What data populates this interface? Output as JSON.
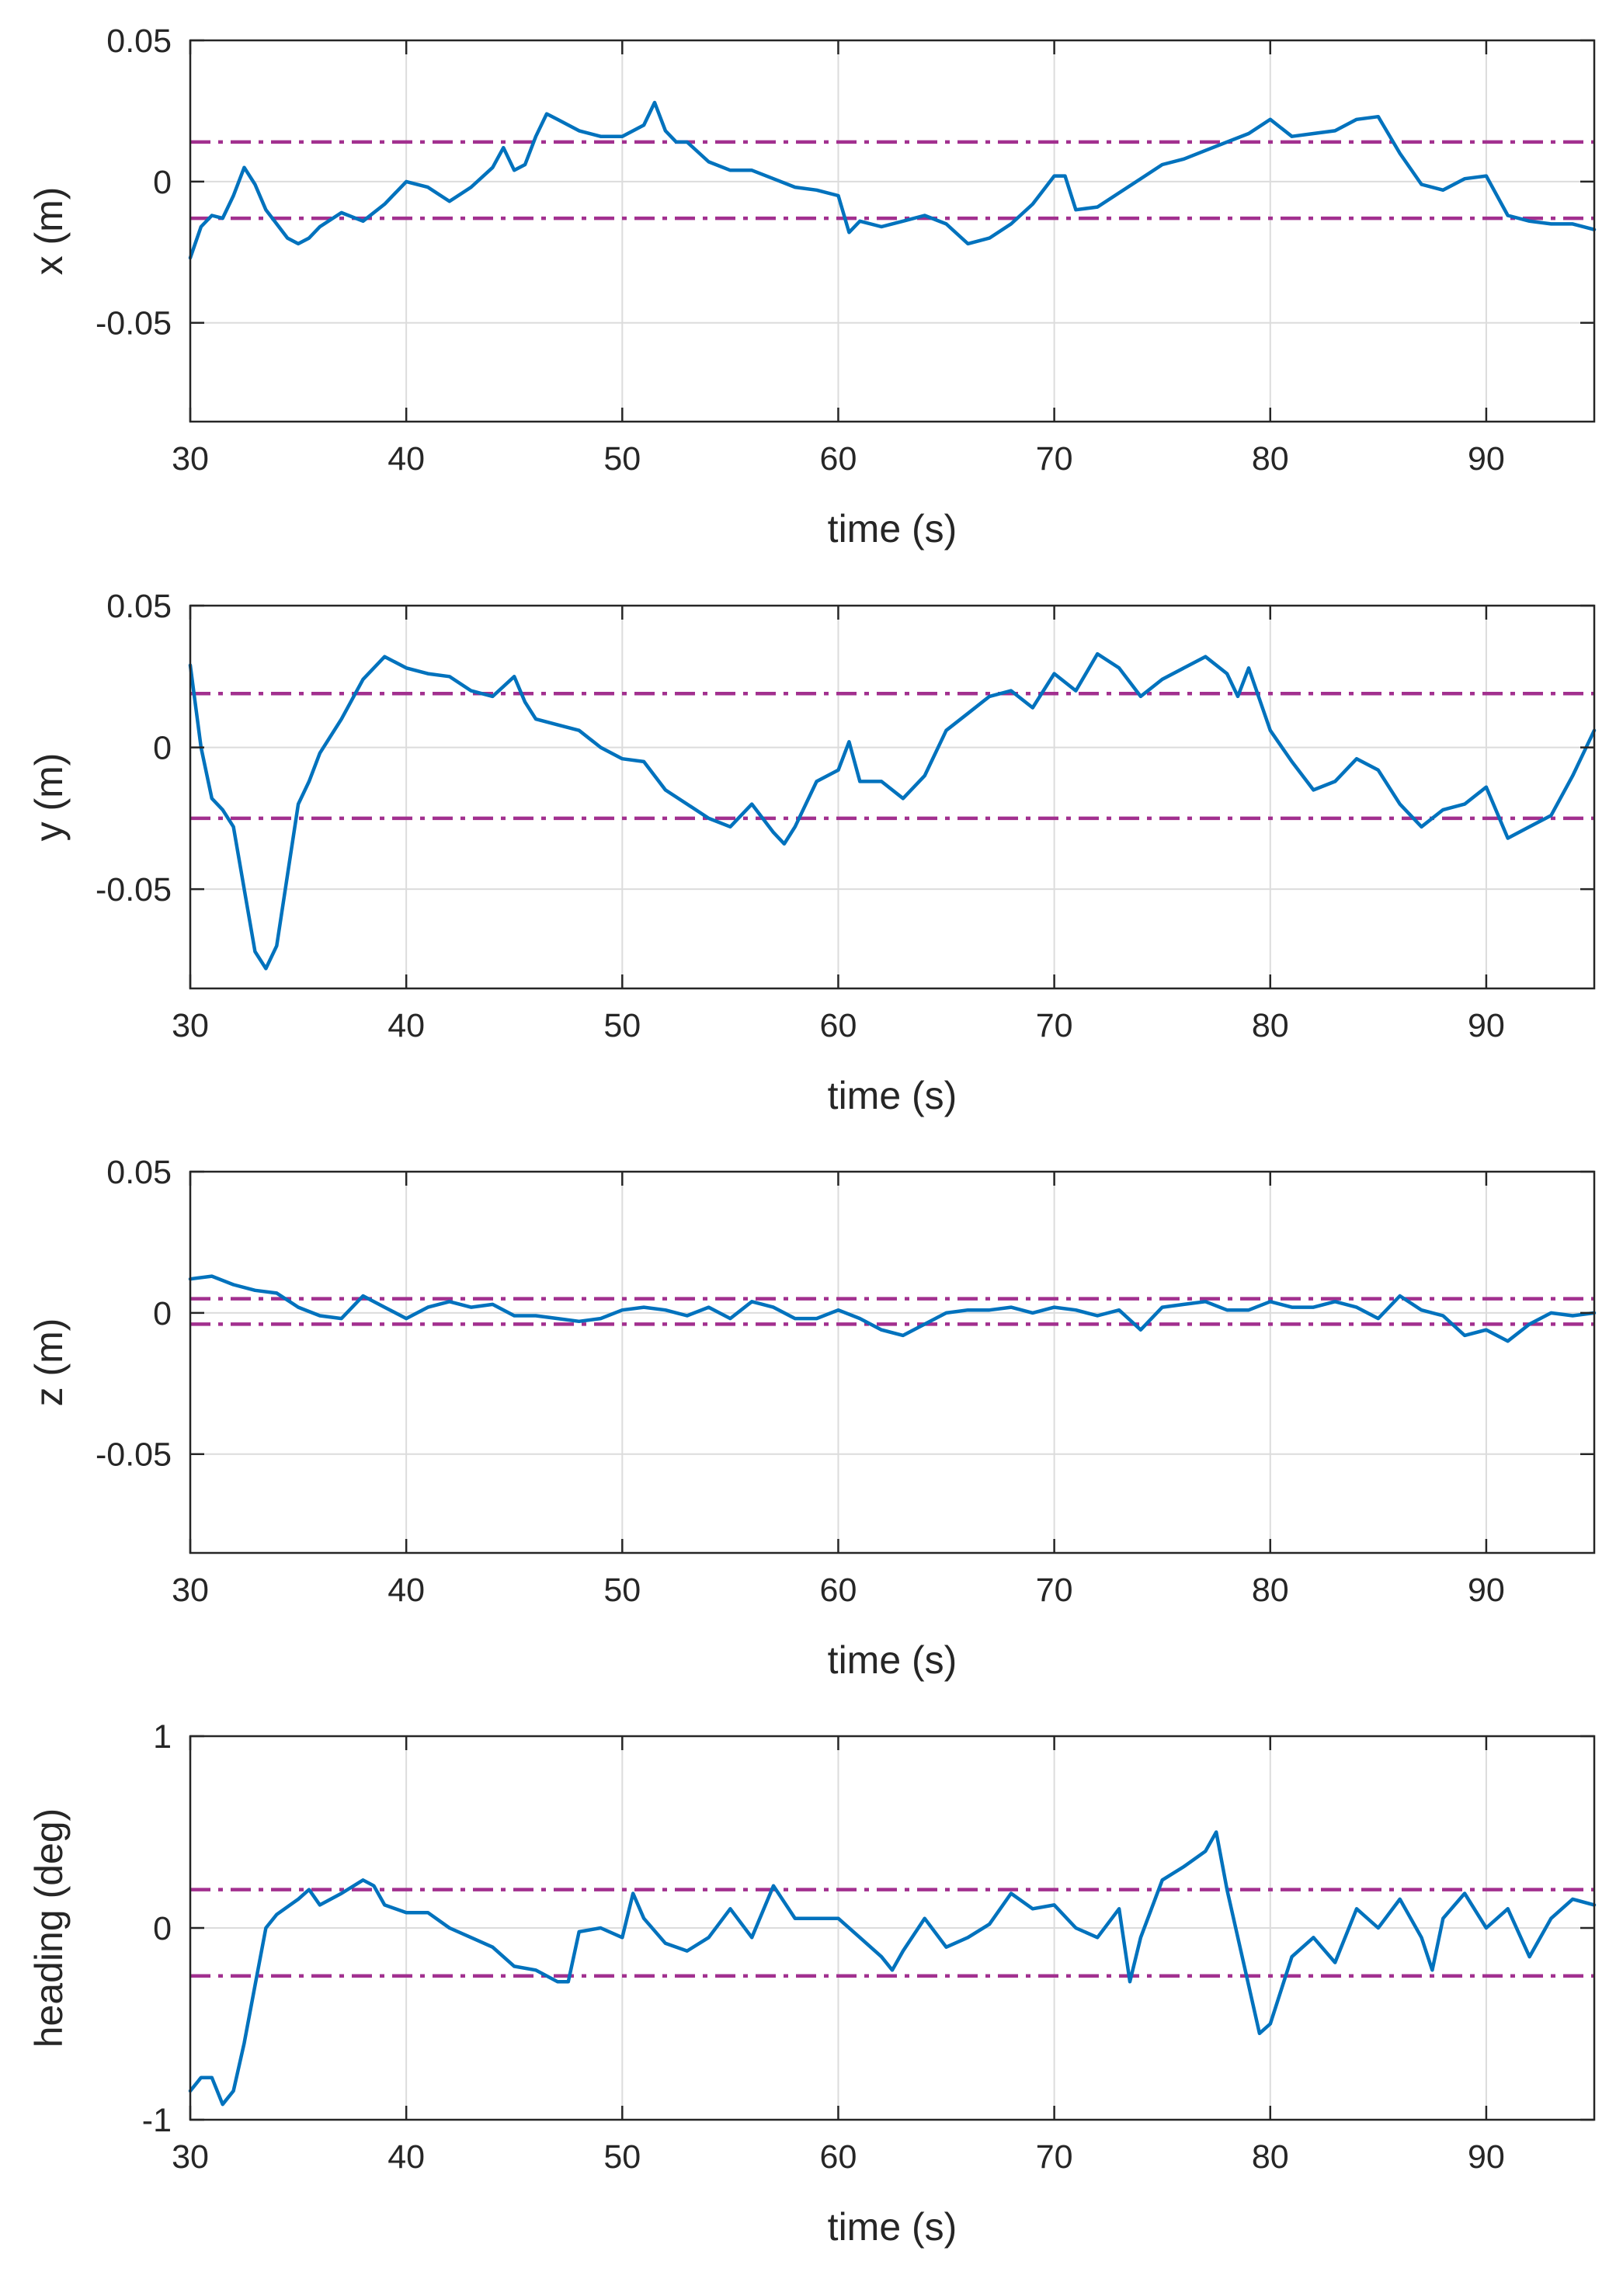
{
  "figure": {
    "background": "#ffffff"
  },
  "style": {
    "series_color": "#0072bd",
    "band_color": "#a2308f",
    "grid_color": "#dcdcdc",
    "axis_color": "#262626"
  },
  "chart_data": [
    {
      "type": "line",
      "title": "",
      "xlabel": "time (s)",
      "ylabel": "x (m)",
      "xlim": [
        30,
        95
      ],
      "ylim": [
        -0.085,
        0.05
      ],
      "xticks": [
        30,
        40,
        50,
        60,
        70,
        80,
        90
      ],
      "xtick_labels": [
        "30",
        "40",
        "50",
        "60",
        "70",
        "80",
        "90"
      ],
      "yticks": [
        0.05,
        0,
        -0.05
      ],
      "ytick_labels": [
        "0.05",
        "0",
        "-0.05"
      ],
      "grid": true,
      "bands": [
        0.014,
        -0.013
      ],
      "series": [
        {
          "name": "x",
          "x": [
            30,
            30.5,
            31,
            31.5,
            32,
            32.5,
            33,
            33.5,
            34,
            34.5,
            35,
            35.5,
            36,
            37,
            38,
            39,
            40,
            41,
            42,
            43,
            44,
            44.5,
            45,
            45.5,
            46,
            46.5,
            47,
            48,
            49,
            50,
            51,
            51.5,
            52,
            52.5,
            53,
            54,
            55,
            56,
            57,
            58,
            59,
            60,
            60.5,
            61,
            62,
            63,
            64,
            65,
            66,
            67,
            68,
            69,
            70,
            70.5,
            71,
            72,
            73,
            74,
            75,
            76,
            77,
            78,
            79,
            80,
            81,
            82,
            83,
            84,
            85,
            86,
            87,
            88,
            89,
            90,
            91,
            92,
            93,
            94,
            95
          ],
          "values": [
            -0.027,
            -0.016,
            -0.012,
            -0.013,
            -0.005,
            0.005,
            -0.001,
            -0.01,
            -0.015,
            -0.02,
            -0.022,
            -0.02,
            -0.016,
            -0.011,
            -0.014,
            -0.008,
            0.0,
            -0.002,
            -0.007,
            -0.002,
            0.005,
            0.012,
            0.004,
            0.006,
            0.016,
            0.024,
            0.022,
            0.018,
            0.016,
            0.016,
            0.02,
            0.028,
            0.018,
            0.014,
            0.014,
            0.007,
            0.004,
            0.004,
            0.001,
            -0.002,
            -0.003,
            -0.005,
            -0.018,
            -0.014,
            -0.016,
            -0.014,
            -0.012,
            -0.015,
            -0.022,
            -0.02,
            -0.015,
            -0.008,
            0.002,
            0.002,
            -0.01,
            -0.009,
            -0.004,
            0.001,
            0.006,
            0.008,
            0.011,
            0.014,
            0.017,
            0.022,
            0.016,
            0.017,
            0.018,
            0.022,
            0.023,
            0.01,
            -0.001,
            -0.003,
            0.001,
            0.002,
            -0.012,
            -0.014,
            -0.015,
            -0.015,
            -0.017
          ]
        }
      ]
    },
    {
      "type": "line",
      "title": "",
      "xlabel": "time (s)",
      "ylabel": "y (m)",
      "xlim": [
        30,
        95
      ],
      "ylim": [
        -0.085,
        0.05
      ],
      "xticks": [
        30,
        40,
        50,
        60,
        70,
        80,
        90
      ],
      "xtick_labels": [
        "30",
        "40",
        "50",
        "60",
        "70",
        "80",
        "90"
      ],
      "yticks": [
        0.05,
        0,
        -0.05
      ],
      "ytick_labels": [
        "0.05",
        "0",
        "-0.05"
      ],
      "grid": true,
      "bands": [
        0.019,
        -0.025
      ],
      "series": [
        {
          "name": "y",
          "x": [
            30,
            30.5,
            31,
            31.5,
            32,
            32.5,
            33,
            33.5,
            34,
            34.5,
            35,
            35.5,
            36,
            37,
            38,
            39,
            40,
            41,
            42,
            43,
            44,
            45,
            45.5,
            46,
            47,
            48,
            49,
            50,
            51,
            52,
            53,
            54,
            55,
            56,
            57,
            57.5,
            58,
            59,
            60,
            60.5,
            61,
            62,
            63,
            64,
            65,
            66,
            67,
            68,
            69,
            70,
            71,
            72,
            73,
            74,
            75,
            76,
            77,
            78,
            78.5,
            79,
            80,
            81,
            82,
            83,
            84,
            85,
            86,
            87,
            88,
            89,
            90,
            91,
            92,
            93,
            94,
            95
          ],
          "values": [
            0.029,
            0.0,
            -0.018,
            -0.022,
            -0.028,
            -0.05,
            -0.072,
            -0.078,
            -0.07,
            -0.045,
            -0.02,
            -0.012,
            -0.002,
            0.01,
            0.024,
            0.032,
            0.028,
            0.026,
            0.025,
            0.02,
            0.018,
            0.025,
            0.016,
            0.01,
            0.008,
            0.006,
            0.0,
            -0.004,
            -0.005,
            -0.015,
            -0.02,
            -0.025,
            -0.028,
            -0.02,
            -0.03,
            -0.034,
            -0.028,
            -0.012,
            -0.008,
            0.002,
            -0.012,
            -0.012,
            -0.018,
            -0.01,
            0.006,
            0.012,
            0.018,
            0.02,
            0.014,
            0.026,
            0.02,
            0.033,
            0.028,
            0.018,
            0.024,
            0.028,
            0.032,
            0.026,
            0.018,
            0.028,
            0.006,
            -0.005,
            -0.015,
            -0.012,
            -0.004,
            -0.008,
            -0.02,
            -0.028,
            -0.022,
            -0.02,
            -0.014,
            -0.032,
            -0.028,
            -0.024,
            -0.01,
            0.006
          ]
        }
      ]
    },
    {
      "type": "line",
      "title": "",
      "xlabel": "time (s)",
      "ylabel": "z (m)",
      "xlim": [
        30,
        95
      ],
      "ylim": [
        -0.085,
        0.05
      ],
      "xticks": [
        30,
        40,
        50,
        60,
        70,
        80,
        90
      ],
      "xtick_labels": [
        "30",
        "40",
        "50",
        "60",
        "70",
        "80",
        "90"
      ],
      "yticks": [
        0.05,
        0,
        -0.05
      ],
      "ytick_labels": [
        "0.05",
        "0",
        "-0.05"
      ],
      "grid": true,
      "bands": [
        0.005,
        -0.004
      ],
      "series": [
        {
          "name": "z",
          "x": [
            30,
            31,
            32,
            33,
            34,
            35,
            36,
            37,
            38,
            39,
            40,
            41,
            42,
            43,
            44,
            45,
            46,
            47,
            48,
            49,
            50,
            51,
            52,
            53,
            54,
            55,
            56,
            57,
            58,
            59,
            60,
            61,
            62,
            63,
            64,
            65,
            66,
            67,
            68,
            69,
            70,
            71,
            72,
            73,
            74,
            75,
            76,
            77,
            78,
            79,
            80,
            81,
            82,
            83,
            84,
            85,
            86,
            87,
            88,
            89,
            90,
            91,
            92,
            93,
            94,
            95
          ],
          "values": [
            0.012,
            0.013,
            0.01,
            0.008,
            0.007,
            0.002,
            -0.001,
            -0.002,
            0.006,
            0.002,
            -0.002,
            0.002,
            0.004,
            0.002,
            0.003,
            -0.001,
            -0.001,
            -0.002,
            -0.003,
            -0.002,
            0.001,
            0.002,
            0.001,
            -0.001,
            0.002,
            -0.002,
            0.004,
            0.002,
            -0.002,
            -0.002,
            0.001,
            -0.002,
            -0.006,
            -0.008,
            -0.004,
            0.0,
            0.001,
            0.001,
            0.002,
            0.0,
            0.002,
            0.001,
            -0.001,
            0.001,
            -0.006,
            0.002,
            0.003,
            0.004,
            0.001,
            0.001,
            0.004,
            0.002,
            0.002,
            0.004,
            0.002,
            -0.002,
            0.006,
            0.001,
            -0.001,
            -0.008,
            -0.006,
            -0.01,
            -0.004,
            0.0,
            -0.001,
            0.0
          ]
        }
      ]
    },
    {
      "type": "line",
      "title": "",
      "xlabel": "time (s)",
      "ylabel": "heading (deg)",
      "xlim": [
        30,
        95
      ],
      "ylim": [
        -1,
        1
      ],
      "xticks": [
        30,
        40,
        50,
        60,
        70,
        80,
        90
      ],
      "xtick_labels": [
        "30",
        "40",
        "50",
        "60",
        "70",
        "80",
        "90"
      ],
      "yticks": [
        1,
        0,
        -1
      ],
      "ytick_labels": [
        "1",
        "0",
        "-1"
      ],
      "grid": true,
      "bands": [
        0.2,
        -0.25
      ],
      "series": [
        {
          "name": "heading",
          "x": [
            30,
            30.5,
            31,
            31.5,
            32,
            32.5,
            33,
            33.5,
            34,
            35,
            35.5,
            36,
            37,
            38,
            38.5,
            39,
            40,
            41,
            42,
            43,
            44,
            45,
            46,
            47,
            47.5,
            48,
            49,
            50,
            50.5,
            51,
            52,
            53,
            54,
            55,
            56,
            57,
            58,
            59,
            60,
            61,
            62,
            62.5,
            63,
            64,
            65,
            66,
            67,
            68,
            69,
            70,
            71,
            72,
            73,
            73.5,
            74,
            75,
            76,
            77,
            77.5,
            78,
            79,
            79.5,
            80,
            81,
            82,
            83,
            84,
            85,
            86,
            87,
            87.5,
            88,
            89,
            90,
            91,
            92,
            93,
            94,
            95
          ],
          "values": [
            -0.85,
            -0.78,
            -0.78,
            -0.92,
            -0.85,
            -0.6,
            -0.3,
            0.0,
            0.07,
            0.15,
            0.2,
            0.12,
            0.18,
            0.25,
            0.22,
            0.12,
            0.08,
            0.08,
            0.0,
            -0.05,
            -0.1,
            -0.2,
            -0.22,
            -0.28,
            -0.28,
            -0.02,
            0.0,
            -0.05,
            0.18,
            0.05,
            -0.08,
            -0.12,
            -0.05,
            0.1,
            -0.05,
            0.22,
            0.05,
            0.05,
            0.05,
            -0.05,
            -0.15,
            -0.22,
            -0.12,
            0.05,
            -0.1,
            -0.05,
            0.02,
            0.18,
            0.1,
            0.12,
            0.0,
            -0.05,
            0.1,
            -0.28,
            -0.05,
            0.25,
            0.32,
            0.4,
            0.5,
            0.2,
            -0.3,
            -0.55,
            -0.5,
            -0.15,
            -0.05,
            -0.18,
            0.1,
            0.0,
            0.15,
            -0.05,
            -0.22,
            0.05,
            0.18,
            0.0,
            0.1,
            -0.15,
            0.05,
            0.15,
            0.12
          ]
        }
      ]
    }
  ]
}
